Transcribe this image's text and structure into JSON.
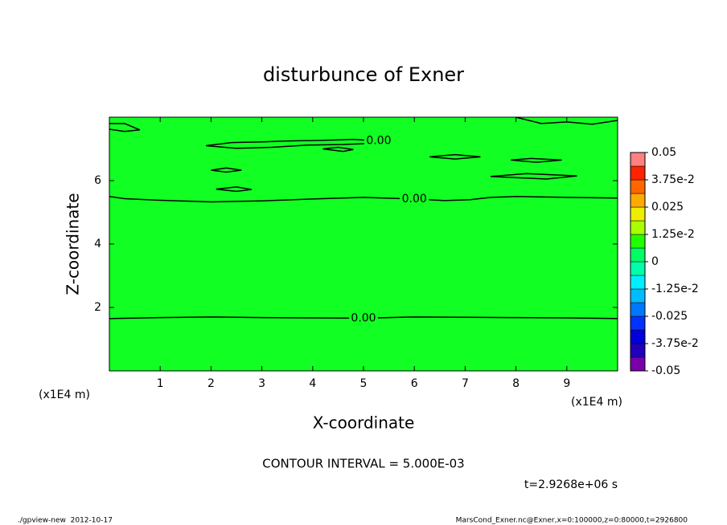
{
  "chart_data": {
    "type": "contour",
    "title": "disturbunce of Exner",
    "xlabel": "X-coordinate",
    "ylabel": "Z-coordinate",
    "x_unit": "(x1E4 m)",
    "y_unit": "(x1E4 m)",
    "xlim": [
      0,
      10
    ],
    "ylim": [
      0,
      8
    ],
    "xticks": [
      1,
      2,
      3,
      4,
      5,
      6,
      7,
      8,
      9
    ],
    "yticks": [
      2,
      4,
      6
    ],
    "fill_color": "#11ff22",
    "line_color": "#000000",
    "contours": [
      {
        "label": "0.00",
        "x": [
          0,
          1,
          2,
          3,
          4,
          5,
          6,
          7,
          8,
          9,
          10
        ],
        "y": [
          1.65,
          1.68,
          1.7,
          1.68,
          1.67,
          1.66,
          1.7,
          1.69,
          1.68,
          1.67,
          1.65
        ]
      },
      {
        "label": "0.00",
        "x": [
          0,
          0.3,
          1,
          2,
          3,
          4,
          5,
          6,
          6.6,
          7.1,
          7.5,
          8,
          9,
          10
        ],
        "y": [
          5.5,
          5.43,
          5.38,
          5.33,
          5.36,
          5.42,
          5.47,
          5.42,
          5.37,
          5.4,
          5.47,
          5.5,
          5.47,
          5.45
        ]
      },
      {
        "label": "0.00",
        "x": [
          1.9,
          2.4,
          3.0,
          3.5,
          4.2,
          4.8,
          5.3,
          5.2,
          4.6,
          3.9,
          3.2,
          2.5,
          1.9
        ],
        "y": [
          7.1,
          7.2,
          7.22,
          7.25,
          7.27,
          7.3,
          7.25,
          7.18,
          7.14,
          7.12,
          7.05,
          7.02,
          7.1
        ]
      },
      {
        "label": null,
        "x": [
          4.2,
          4.5,
          4.8,
          4.6,
          4.2
        ],
        "y": [
          7.0,
          7.05,
          6.98,
          6.92,
          7.0
        ]
      },
      {
        "label": null,
        "x": [
          2.0,
          2.3,
          2.6,
          2.3,
          2.0
        ],
        "y": [
          6.33,
          6.4,
          6.33,
          6.27,
          6.33
        ]
      },
      {
        "label": null,
        "x": [
          2.1,
          2.5,
          2.8,
          2.5,
          2.1
        ],
        "y": [
          5.73,
          5.8,
          5.72,
          5.66,
          5.73
        ]
      },
      {
        "label": null,
        "x": [
          6.3,
          6.8,
          7.3,
          6.8,
          6.3
        ],
        "y": [
          6.75,
          6.82,
          6.75,
          6.68,
          6.75
        ]
      },
      {
        "label": null,
        "x": [
          7.9,
          8.3,
          8.9,
          8.4,
          7.9
        ],
        "y": [
          6.65,
          6.7,
          6.65,
          6.58,
          6.65
        ]
      },
      {
        "label": null,
        "x": [
          7.5,
          8.2,
          9.2,
          8.6,
          7.5
        ],
        "y": [
          6.13,
          6.22,
          6.15,
          6.05,
          6.13
        ]
      },
      {
        "label": null,
        "x": [
          0,
          0.3,
          0.6,
          0.3,
          0
        ],
        "y": [
          7.8,
          7.8,
          7.6,
          7.55,
          7.62
        ]
      },
      {
        "label": null,
        "x": [
          8.0,
          8.5,
          9.0,
          9.5,
          10
        ],
        "y": [
          8.0,
          7.8,
          7.85,
          7.78,
          7.9
        ]
      }
    ],
    "colorbar": {
      "lim": [
        -0.05,
        0.05
      ],
      "ticks": [
        -0.05,
        {
          "value": -0.0375,
          "label": "-3.75e-2"
        },
        -0.025,
        {
          "value": -0.0125,
          "label": "-1.25e-2"
        },
        0,
        {
          "value": 0.0125,
          "label": "1.25e-2"
        },
        0.025,
        {
          "value": 0.0375,
          "label": "3.75e-2"
        },
        0.05
      ],
      "colors": [
        "#7a00aa",
        "#2200bb",
        "#0000dd",
        "#0033ff",
        "#0077ff",
        "#00bbff",
        "#00eeff",
        "#00ffaa",
        "#00ff66",
        "#22ff00",
        "#aaff00",
        "#eeee00",
        "#ffaa00",
        "#ff6600",
        "#ff2200",
        "#ff8080"
      ]
    },
    "annotation": "CONTOUR INTERVAL = 5.000E-03",
    "time_label": "t=2.9268e+06 s",
    "footer_left": "./gpview-new  2012-10-17",
    "footer_right": "MarsCond_Exner.nc@Exner,x=0:100000,z=0:80000,t=2926800"
  }
}
